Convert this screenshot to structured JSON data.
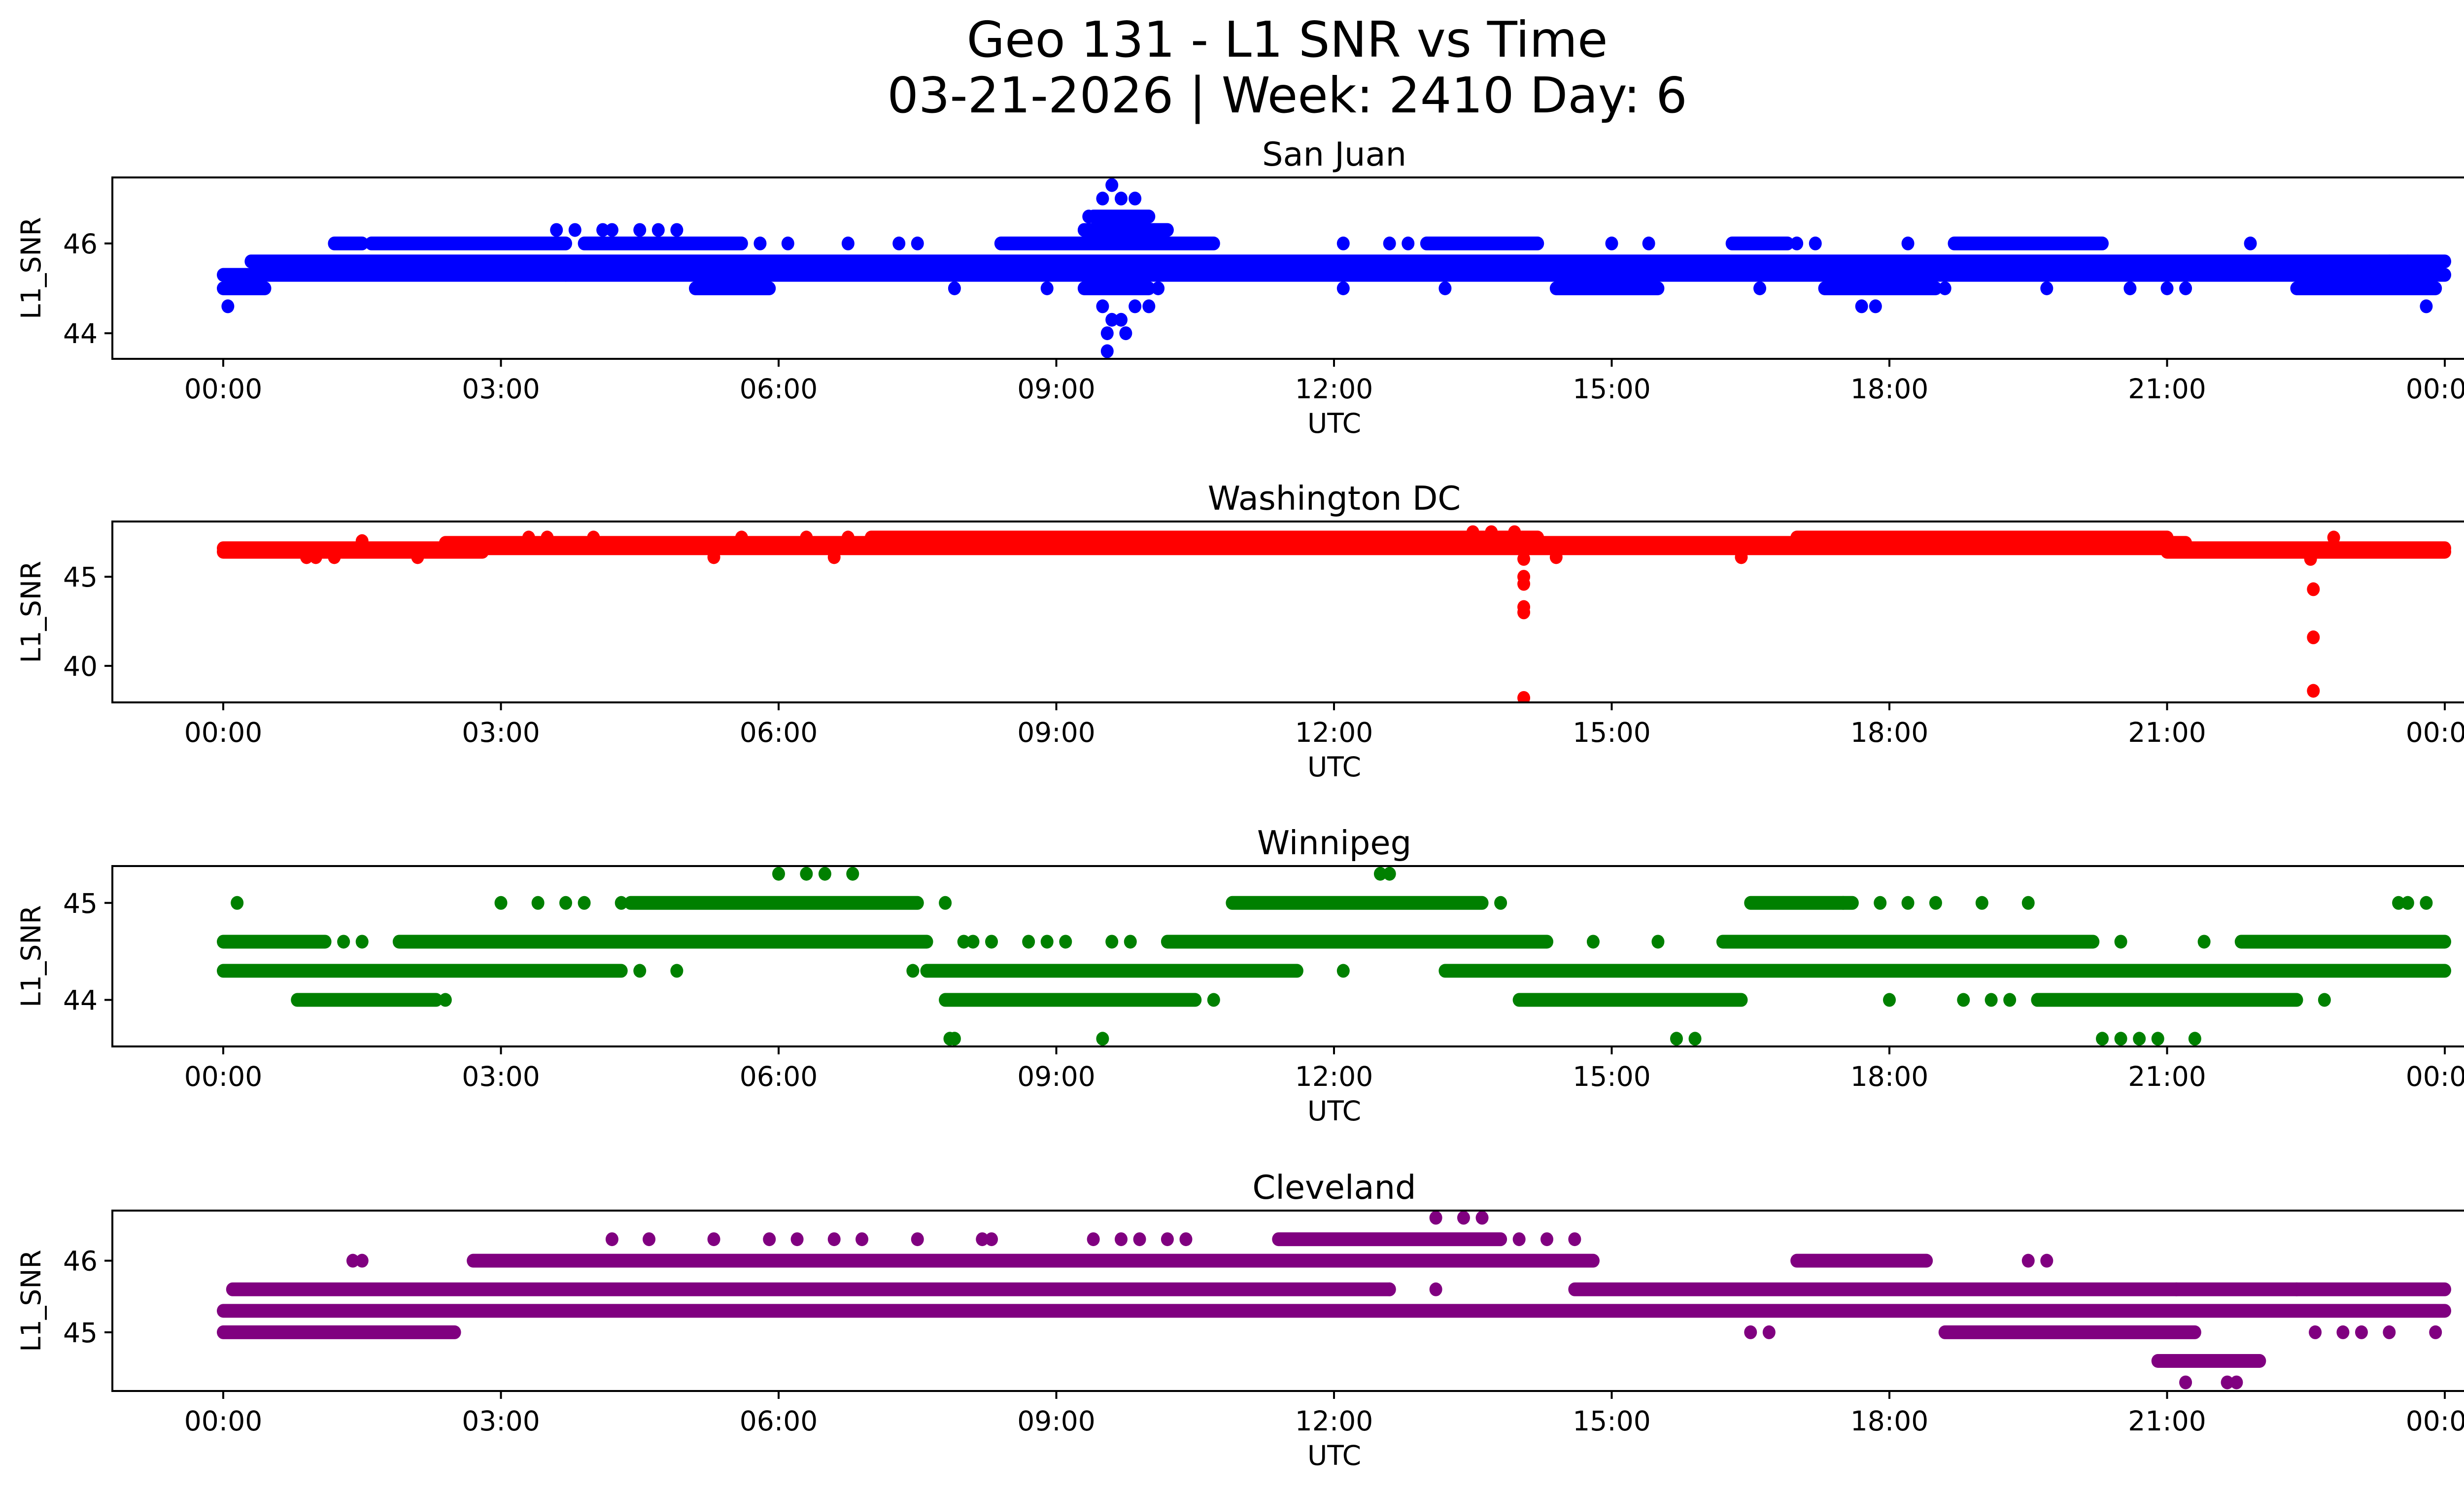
{
  "chart_data": {
    "type": "scatter",
    "title": "Geo 131 - L1 SNR vs Time",
    "subtitle": "03-21-2026 | Week: 2410 Day: 6",
    "x_ticks": [
      "00:00",
      "03:00",
      "06:00",
      "09:00",
      "12:00",
      "15:00",
      "18:00",
      "21:00",
      "00:00"
    ],
    "x_tick_hours": [
      0,
      3,
      6,
      9,
      12,
      15,
      18,
      21,
      24
    ],
    "xlim_hours": [
      -1.2,
      25.2
    ],
    "grid": false,
    "subplots": [
      {
        "name": "San Juan",
        "color": "#0000ff",
        "xlabel": "UTC",
        "ylabel": "L1_SNR",
        "ylim": [
          43.43,
          47.47
        ],
        "y_ticks": [
          44,
          46
        ],
        "runs": [
          {
            "y": 45.0,
            "from": 0.0,
            "to": 0.45
          },
          {
            "y": 45.3,
            "from": 0.0,
            "to": 24.0
          },
          {
            "y": 45.6,
            "from": 0.3,
            "to": 24.0
          },
          {
            "y": 46.0,
            "from": 1.2,
            "to": 1.5
          },
          {
            "y": 46.0,
            "from": 1.6,
            "to": 3.7
          },
          {
            "y": 46.0,
            "from": 3.9,
            "to": 5.6
          },
          {
            "y": 46.0,
            "from": 8.4,
            "to": 10.7
          },
          {
            "y": 46.0,
            "from": 13.0,
            "to": 14.2
          },
          {
            "y": 46.0,
            "from": 16.3,
            "to": 16.9
          },
          {
            "y": 46.0,
            "from": 18.7,
            "to": 20.3
          },
          {
            "y": 45.0,
            "from": 5.1,
            "to": 5.9
          },
          {
            "y": 45.0,
            "from": 14.4,
            "to": 15.5
          },
          {
            "y": 45.0,
            "from": 17.3,
            "to": 18.5
          },
          {
            "y": 45.0,
            "from": 22.4,
            "to": 23.9
          },
          {
            "y": 46.3,
            "from": 9.3,
            "to": 10.2
          },
          {
            "y": 46.6,
            "from": 9.4,
            "to": 10.0
          },
          {
            "y": 45.0,
            "from": 9.3,
            "to": 10.0
          }
        ],
        "points": [
          [
            0.05,
            44.6
          ],
          [
            3.6,
            46.3
          ],
          [
            3.8,
            46.3
          ],
          [
            4.1,
            46.3
          ],
          [
            4.2,
            46.3
          ],
          [
            4.5,
            46.3
          ],
          [
            4.7,
            46.3
          ],
          [
            4.9,
            46.3
          ],
          [
            3.7,
            45.3
          ],
          [
            5.8,
            46.0
          ],
          [
            6.1,
            46.0
          ],
          [
            6.75,
            46.0
          ],
          [
            7.3,
            46.0
          ],
          [
            7.5,
            46.0
          ],
          [
            7.9,
            45.0
          ],
          [
            8.9,
            45.0
          ],
          [
            9.35,
            46.6
          ],
          [
            9.5,
            47.0
          ],
          [
            9.6,
            47.3
          ],
          [
            9.7,
            47.0
          ],
          [
            9.85,
            47.0
          ],
          [
            9.5,
            44.6
          ],
          [
            9.6,
            44.3
          ],
          [
            9.55,
            44.0
          ],
          [
            9.7,
            44.3
          ],
          [
            9.75,
            44.0
          ],
          [
            9.55,
            43.6
          ],
          [
            9.85,
            44.6
          ],
          [
            10.0,
            44.6
          ],
          [
            10.1,
            45.0
          ],
          [
            12.1,
            46.0
          ],
          [
            12.1,
            45.0
          ],
          [
            12.6,
            46.0
          ],
          [
            12.8,
            46.0
          ],
          [
            13.2,
            45.0
          ],
          [
            14.5,
            45.0
          ],
          [
            15.0,
            46.0
          ],
          [
            15.4,
            46.0
          ],
          [
            16.6,
            45.0
          ],
          [
            17.0,
            46.0
          ],
          [
            17.2,
            46.0
          ],
          [
            17.7,
            44.6
          ],
          [
            17.85,
            44.6
          ],
          [
            18.2,
            46.0
          ],
          [
            18.6,
            45.0
          ],
          [
            19.7,
            45.0
          ],
          [
            20.6,
            45.0
          ],
          [
            21.0,
            45.0
          ],
          [
            21.2,
            45.0
          ],
          [
            21.9,
            46.0
          ],
          [
            23.8,
            44.6
          ],
          [
            23.4,
            45.6
          ],
          [
            23.6,
            45.6
          ]
        ]
      },
      {
        "name": "Washington DC",
        "color": "#ff0000",
        "xlabel": "UTC",
        "ylabel": "L1_SNR",
        "ylim": [
          37.95,
          48.1
        ],
        "y_ticks": [
          40,
          45
        ],
        "runs": [
          {
            "y": 46.4,
            "from": 0.0,
            "to": 2.8
          },
          {
            "y": 46.6,
            "from": 0.0,
            "to": 24.0
          },
          {
            "y": 46.9,
            "from": 2.4,
            "to": 21.2
          },
          {
            "y": 47.2,
            "from": 7.0,
            "to": 14.2
          },
          {
            "y": 47.2,
            "from": 17.0,
            "to": 21.0
          },
          {
            "y": 46.4,
            "from": 21.0,
            "to": 24.0
          }
        ],
        "points": [
          [
            0.9,
            46.1
          ],
          [
            1.0,
            46.1
          ],
          [
            1.2,
            46.1
          ],
          [
            1.5,
            47.0
          ],
          [
            2.1,
            46.1
          ],
          [
            3.3,
            47.2
          ],
          [
            3.5,
            47.2
          ],
          [
            4.0,
            47.2
          ],
          [
            5.3,
            46.1
          ],
          [
            5.6,
            47.2
          ],
          [
            6.3,
            47.2
          ],
          [
            6.6,
            46.1
          ],
          [
            6.75,
            47.2
          ],
          [
            13.5,
            47.5
          ],
          [
            13.7,
            47.5
          ],
          [
            13.95,
            47.5
          ],
          [
            14.05,
            46.0
          ],
          [
            14.05,
            45.0
          ],
          [
            14.05,
            44.6
          ],
          [
            14.05,
            43.3
          ],
          [
            14.05,
            43.0
          ],
          [
            14.05,
            38.2
          ],
          [
            14.4,
            46.1
          ],
          [
            16.4,
            46.1
          ],
          [
            22.55,
            46.0
          ],
          [
            22.58,
            44.3
          ],
          [
            22.58,
            41.6
          ],
          [
            22.58,
            38.6
          ],
          [
            22.8,
            47.2
          ]
        ]
      },
      {
        "name": "Winnipeg",
        "color": "#008000",
        "xlabel": "UTC",
        "ylabel": "L1_SNR",
        "ylim": [
          43.52,
          45.38
        ],
        "y_ticks": [
          44,
          45
        ],
        "runs": [
          {
            "y": 44.6,
            "from": 0.0,
            "to": 1.1
          },
          {
            "y": 44.3,
            "from": 0.0,
            "to": 4.3
          },
          {
            "y": 44.0,
            "from": 0.8,
            "to": 2.3
          },
          {
            "y": 44.6,
            "from": 1.9,
            "to": 7.6
          },
          {
            "y": 45.0,
            "from": 4.4,
            "to": 7.5
          },
          {
            "y": 44.3,
            "from": 7.6,
            "to": 11.6
          },
          {
            "y": 44.0,
            "from": 7.8,
            "to": 10.5
          },
          {
            "y": 44.6,
            "from": 10.2,
            "to": 14.3
          },
          {
            "y": 45.0,
            "from": 10.9,
            "to": 13.6
          },
          {
            "y": 44.3,
            "from": 13.2,
            "to": 24.0
          },
          {
            "y": 44.0,
            "from": 14.0,
            "to": 16.4
          },
          {
            "y": 44.6,
            "from": 16.2,
            "to": 20.2
          },
          {
            "y": 45.0,
            "from": 16.5,
            "to": 17.6
          },
          {
            "y": 44.0,
            "from": 19.6,
            "to": 22.4
          },
          {
            "y": 44.6,
            "from": 21.8,
            "to": 24.0
          }
        ],
        "points": [
          [
            0.15,
            45.0
          ],
          [
            1.3,
            44.6
          ],
          [
            1.5,
            44.6
          ],
          [
            2.4,
            44.0
          ],
          [
            3.0,
            45.0
          ],
          [
            3.4,
            45.0
          ],
          [
            3.7,
            45.0
          ],
          [
            3.9,
            45.0
          ],
          [
            4.3,
            45.0
          ],
          [
            4.5,
            44.3
          ],
          [
            4.9,
            44.3
          ],
          [
            6.0,
            45.3
          ],
          [
            6.3,
            45.3
          ],
          [
            6.5,
            45.3
          ],
          [
            6.8,
            45.3
          ],
          [
            7.45,
            44.3
          ],
          [
            7.8,
            45.0
          ],
          [
            7.85,
            43.6
          ],
          [
            7.9,
            43.6
          ],
          [
            8.0,
            44.6
          ],
          [
            8.1,
            44.6
          ],
          [
            8.3,
            44.6
          ],
          [
            8.7,
            44.6
          ],
          [
            8.9,
            44.6
          ],
          [
            9.1,
            44.6
          ],
          [
            9.5,
            43.6
          ],
          [
            9.6,
            44.6
          ],
          [
            9.8,
            44.6
          ],
          [
            10.7,
            44.0
          ],
          [
            12.1,
            44.3
          ],
          [
            12.5,
            45.3
          ],
          [
            12.6,
            45.3
          ],
          [
            13.8,
            45.0
          ],
          [
            14.8,
            44.6
          ],
          [
            15.5,
            44.6
          ],
          [
            15.7,
            43.6
          ],
          [
            15.9,
            43.6
          ],
          [
            16.5,
            44.6
          ],
          [
            17.5,
            45.0
          ],
          [
            17.9,
            45.0
          ],
          [
            18.0,
            44.0
          ],
          [
            18.2,
            45.0
          ],
          [
            18.5,
            45.0
          ],
          [
            18.8,
            44.0
          ],
          [
            19.0,
            45.0
          ],
          [
            19.1,
            44.0
          ],
          [
            19.3,
            44.0
          ],
          [
            19.5,
            45.0
          ],
          [
            19.6,
            44.0
          ],
          [
            20.3,
            43.6
          ],
          [
            20.5,
            43.6
          ],
          [
            20.7,
            43.6
          ],
          [
            20.9,
            43.6
          ],
          [
            21.3,
            43.6
          ],
          [
            21.4,
            44.6
          ],
          [
            20.5,
            44.6
          ],
          [
            22.7,
            44.0
          ],
          [
            23.5,
            45.0
          ],
          [
            23.6,
            45.0
          ],
          [
            23.8,
            45.0
          ]
        ]
      },
      {
        "name": "Cleveland",
        "color": "#800080",
        "xlabel": "UTC",
        "ylabel": "L1_SNR",
        "ylim": [
          44.18,
          46.7
        ],
        "y_ticks": [
          45,
          46
        ],
        "runs": [
          {
            "y": 45.0,
            "from": 0.0,
            "to": 2.5
          },
          {
            "y": 45.3,
            "from": 0.0,
            "to": 24.0
          },
          {
            "y": 45.6,
            "from": 0.1,
            "to": 12.6
          },
          {
            "y": 45.6,
            "from": 14.6,
            "to": 24.0
          },
          {
            "y": 46.0,
            "from": 2.7,
            "to": 14.8
          },
          {
            "y": 46.3,
            "from": 11.4,
            "to": 13.8
          },
          {
            "y": 45.0,
            "from": 18.6,
            "to": 21.3
          },
          {
            "y": 46.0,
            "from": 17.0,
            "to": 18.4
          },
          {
            "y": 44.6,
            "from": 20.9,
            "to": 22.0
          }
        ],
        "points": [
          [
            1.4,
            46.0
          ],
          [
            1.5,
            46.0
          ],
          [
            4.2,
            46.3
          ],
          [
            4.6,
            46.3
          ],
          [
            5.3,
            46.3
          ],
          [
            5.9,
            46.3
          ],
          [
            6.2,
            46.3
          ],
          [
            6.6,
            46.3
          ],
          [
            6.9,
            46.3
          ],
          [
            7.5,
            46.3
          ],
          [
            8.2,
            46.3
          ],
          [
            8.3,
            46.3
          ],
          [
            9.4,
            46.3
          ],
          [
            9.7,
            46.3
          ],
          [
            9.9,
            46.3
          ],
          [
            10.2,
            46.3
          ],
          [
            10.4,
            46.3
          ],
          [
            13.1,
            46.6
          ],
          [
            13.4,
            46.6
          ],
          [
            13.6,
            46.6
          ],
          [
            12.6,
            45.6
          ],
          [
            13.1,
            45.6
          ],
          [
            14.0,
            46.3
          ],
          [
            14.3,
            46.3
          ],
          [
            14.6,
            46.3
          ],
          [
            16.5,
            45.0
          ],
          [
            16.7,
            45.0
          ],
          [
            19.5,
            46.0
          ],
          [
            19.7,
            46.0
          ],
          [
            21.2,
            44.3
          ],
          [
            21.65,
            44.3
          ],
          [
            21.75,
            44.3
          ],
          [
            21.1,
            45.6
          ],
          [
            22.4,
            45.6
          ],
          [
            22.6,
            45.0
          ],
          [
            22.9,
            45.0
          ],
          [
            23.1,
            45.0
          ],
          [
            23.4,
            45.0
          ],
          [
            23.9,
            45.0
          ]
        ]
      }
    ]
  }
}
